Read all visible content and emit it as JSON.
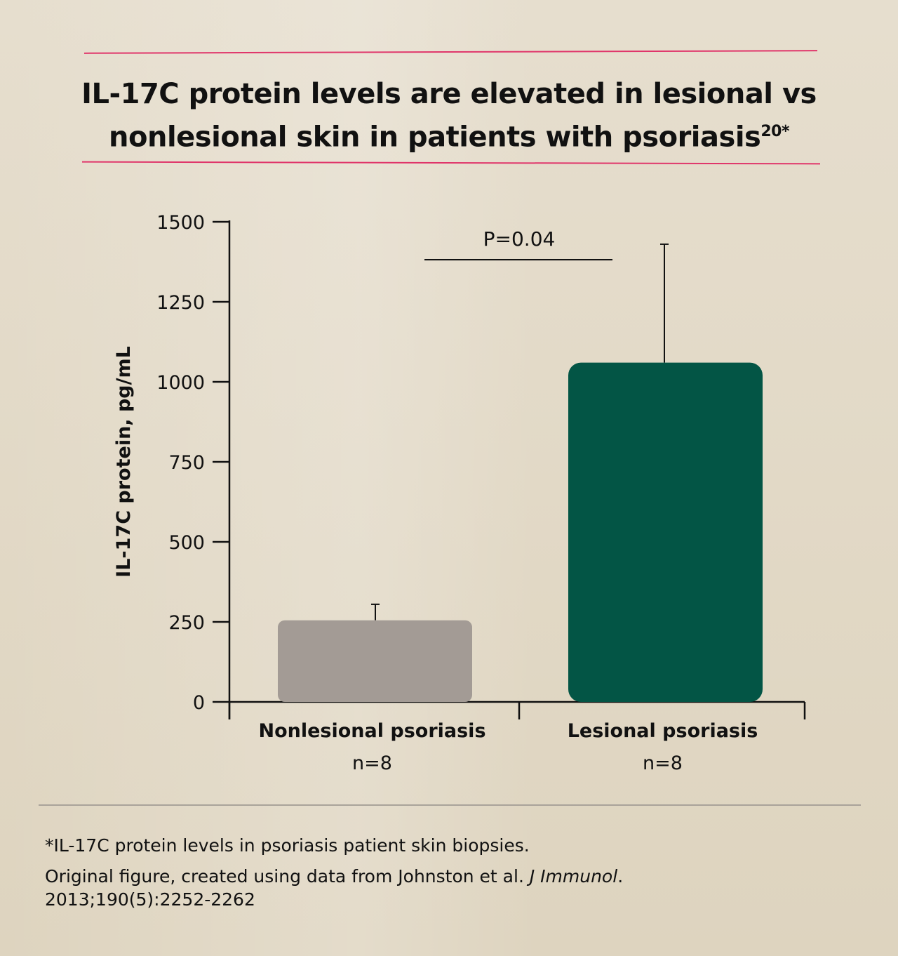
{
  "title": "IL-17C protein levels are elevated in lesional vs nonlesional skin in patients with psoriasis",
  "title_superscript": "20*",
  "chart_data": {
    "type": "bar",
    "categories": [
      "Nonlesional psoriasis",
      "Lesional psoriasis"
    ],
    "category_sublabels": [
      "n=8",
      "n=8"
    ],
    "values": [
      255,
      1060
    ],
    "error_upper": [
      305,
      1430
    ],
    "colors": [
      "#a39b95",
      "#035545"
    ],
    "ylabel": "IL-17C protein, pg/mL",
    "ylim": [
      0,
      1500
    ],
    "yticks": [
      0,
      250,
      500,
      750,
      1000,
      1250,
      1500
    ],
    "annotation": "P=0.04",
    "grid": false
  },
  "footnote": {
    "line1": "*IL-17C protein levels in psoriasis patient skin biopsies.",
    "line2_prefix": "Original figure, created using data from Johnston et al. ",
    "line2_journal": "J Immunol",
    "line2_suffix": ".",
    "line3": "2013;190(5):2252-2262"
  }
}
